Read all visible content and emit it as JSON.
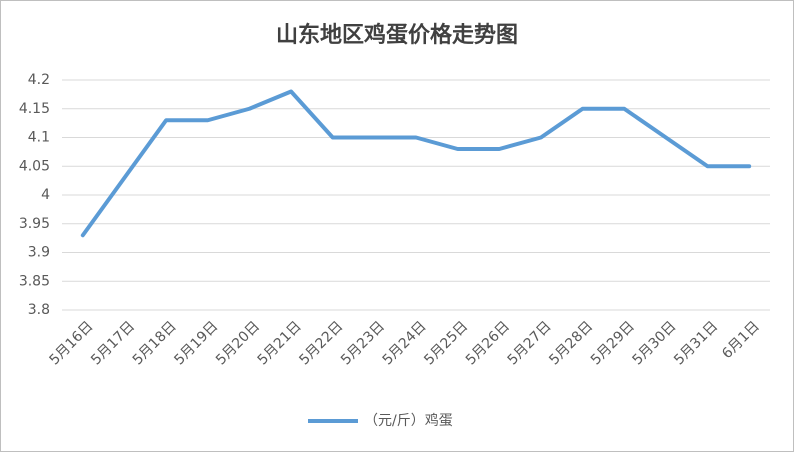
{
  "chart_data": {
    "type": "line",
    "title": "山东地区鸡蛋价格走势图",
    "categories": [
      "5月16日",
      "5月17日",
      "5月18日",
      "5月19日",
      "5月20日",
      "5月21日",
      "5月22日",
      "5月23日",
      "5月24日",
      "5月25日",
      "5月26日",
      "5月27日",
      "5月28日",
      "5月29日",
      "5月30日",
      "5月31日",
      "6月1日"
    ],
    "series": [
      {
        "name": "（元/斤）鸡蛋",
        "color": "#5b9bd5",
        "values": [
          3.93,
          4.03,
          4.13,
          4.13,
          4.15,
          4.18,
          4.1,
          4.1,
          4.1,
          4.08,
          4.08,
          4.1,
          4.15,
          4.15,
          4.1,
          4.05,
          4.05
        ]
      }
    ],
    "ylim": [
      3.8,
      4.2
    ],
    "yticks": [
      3.8,
      3.85,
      3.9,
      3.95,
      4,
      4.05,
      4.1,
      4.15,
      4.2
    ],
    "grid": true,
    "legend": "bottom"
  }
}
